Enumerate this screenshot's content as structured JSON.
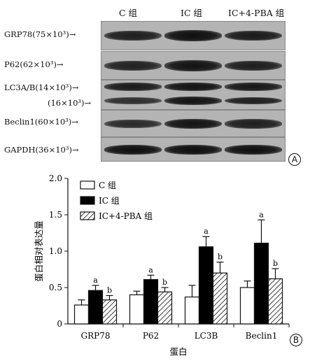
{
  "panel_a": {
    "lane_headers": [
      "C 组",
      "IC 组",
      "IC+4-PBA 组"
    ],
    "blots": [
      {
        "label": "GRP78(75×10³)→",
        "band_intensity": [
          0.75,
          0.95,
          0.8
        ]
      },
      {
        "label": "P62(62×10³)→",
        "band_intensity": [
          0.7,
          0.9,
          0.75
        ]
      },
      {
        "label": "LC3A/B(14×10³)→",
        "band_intensity": [
          0.8,
          0.9,
          0.85
        ]
      },
      {
        "label": "(16×10³)→",
        "band_intensity": [
          0.55,
          0.9,
          0.75
        ]
      },
      {
        "label": "Beclin1(60×10³)→",
        "band_intensity": [
          0.6,
          0.9,
          0.75
        ]
      },
      {
        "label": "GAPDH(36×10³)→",
        "band_intensity": [
          0.95,
          0.95,
          0.95
        ]
      }
    ],
    "panel_letter": "A"
  },
  "chart_data": {
    "type": "bar",
    "categories": [
      "GRP78",
      "P62",
      "LC3B",
      "Beclin1"
    ],
    "series": [
      {
        "name": "C 组",
        "values": [
          0.26,
          0.4,
          0.37,
          0.5
        ],
        "errors": [
          0.07,
          0.05,
          0.16,
          0.09
        ],
        "fill": "white",
        "sig": [
          "",
          "",
          "",
          ""
        ]
      },
      {
        "name": "IC 组",
        "values": [
          0.46,
          0.61,
          1.06,
          1.11
        ],
        "errors": [
          0.07,
          0.06,
          0.14,
          0.32
        ],
        "fill": "black",
        "sig": [
          "a",
          "a",
          "a",
          "a"
        ]
      },
      {
        "name": "IC+4-PBA 组",
        "values": [
          0.33,
          0.44,
          0.7,
          0.62
        ],
        "errors": [
          0.06,
          0.06,
          0.15,
          0.14
        ],
        "fill": "hatched",
        "sig": [
          "b",
          "b",
          "b",
          "b"
        ]
      }
    ],
    "ylabel": "蛋白相对表达量",
    "xlabel": "蛋白",
    "ylim": [
      0,
      2.0
    ],
    "yticks": [
      "0",
      "0.5",
      "1.0",
      "1.5",
      "2.0"
    ],
    "legend_position": "top-left",
    "grid": false,
    "panel_letter": "B"
  }
}
